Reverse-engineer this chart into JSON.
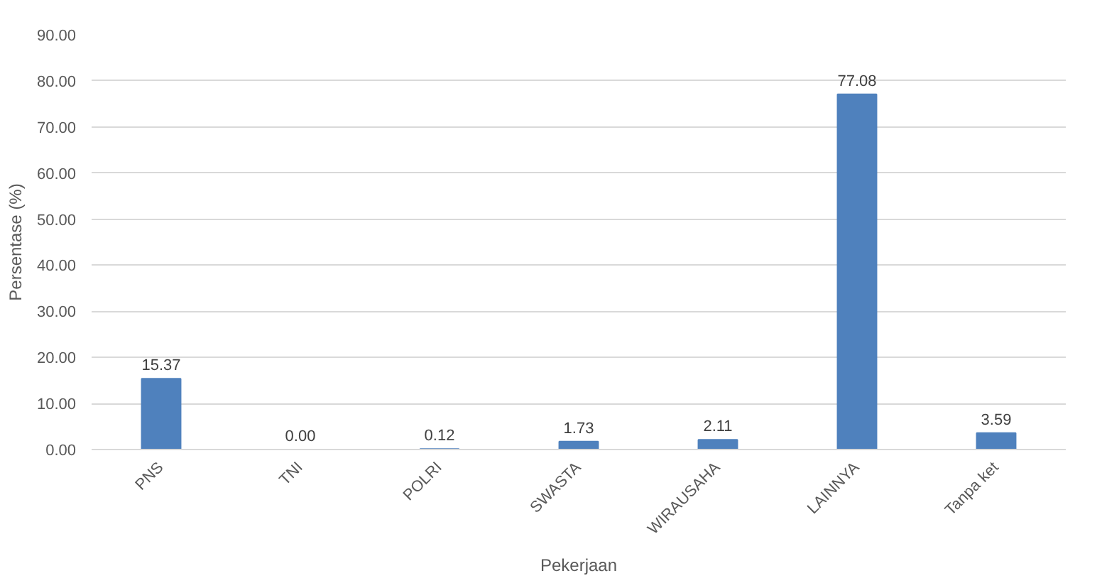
{
  "chart_data": {
    "type": "bar",
    "categories": [
      "PNS",
      "TNI",
      "POLRI",
      "SWASTA",
      "WIRAUSAHA",
      "LAINNYA",
      "Tanpa ket"
    ],
    "values": [
      15.37,
      0.0,
      0.12,
      1.73,
      2.11,
      77.08,
      3.59
    ],
    "value_labels": [
      "15.37",
      "0.00",
      "0.12",
      "1.73",
      "2.11",
      "77.08",
      "3.59"
    ],
    "color": "#4f81bd",
    "xlabel": "Pekerjaan",
    "ylabel": "Persentase (%)",
    "ylim": [
      0,
      90
    ],
    "yticks": [
      {
        "value": 0,
        "label": "0.00"
      },
      {
        "value": 10,
        "label": "10.00"
      },
      {
        "value": 20,
        "label": "20.00"
      },
      {
        "value": 30,
        "label": "30.00"
      },
      {
        "value": 40,
        "label": "40.00"
      },
      {
        "value": 50,
        "label": "50.00"
      },
      {
        "value": 60,
        "label": "60.00"
      },
      {
        "value": 70,
        "label": "70.00"
      },
      {
        "value": 80,
        "label": "80.00"
      },
      {
        "value": 90,
        "label": "90.00"
      }
    ],
    "grid": "y"
  }
}
